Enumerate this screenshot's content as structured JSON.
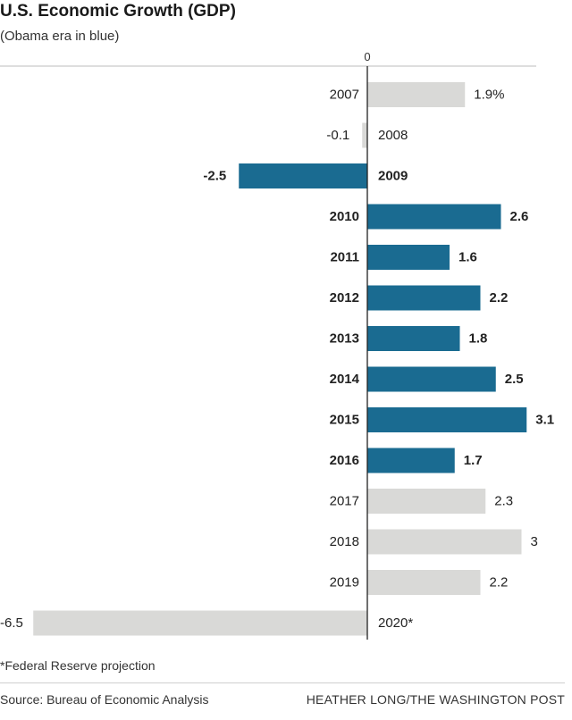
{
  "chart_data": {
    "type": "bar",
    "orientation": "horizontal",
    "title": "U.S. Economic Growth (GDP)",
    "subtitle": "(Obama era in blue)",
    "zero_label": "0",
    "colors": {
      "obama": "#1a6b91",
      "other": "#d9d9d7",
      "axis": "#222222",
      "grid": "#bdbdbd"
    },
    "categories": [
      "2007",
      "2008",
      "2009",
      "2010",
      "2011",
      "2012",
      "2013",
      "2014",
      "2015",
      "2016",
      "2017",
      "2018",
      "2019",
      "2020*"
    ],
    "values": [
      1.9,
      -0.1,
      -2.5,
      2.6,
      1.6,
      2.2,
      1.8,
      2.5,
      3.1,
      1.7,
      2.3,
      3,
      2.2,
      -6.5
    ],
    "value_labels": [
      "1.9%",
      "-0.1",
      "-2.5",
      "2.6",
      "1.6",
      "2.2",
      "1.8",
      "2.5",
      "3.1",
      "1.7",
      "2.3",
      "3",
      "2.2",
      "-6.5"
    ],
    "obama_era": [
      false,
      false,
      true,
      true,
      true,
      true,
      true,
      true,
      true,
      true,
      false,
      false,
      false,
      false
    ]
  },
  "footnote": "*Federal Reserve projection",
  "source": "Source: Bureau of Economic Analysis",
  "credit": "HEATHER LONG/THE WASHINGTON POST"
}
